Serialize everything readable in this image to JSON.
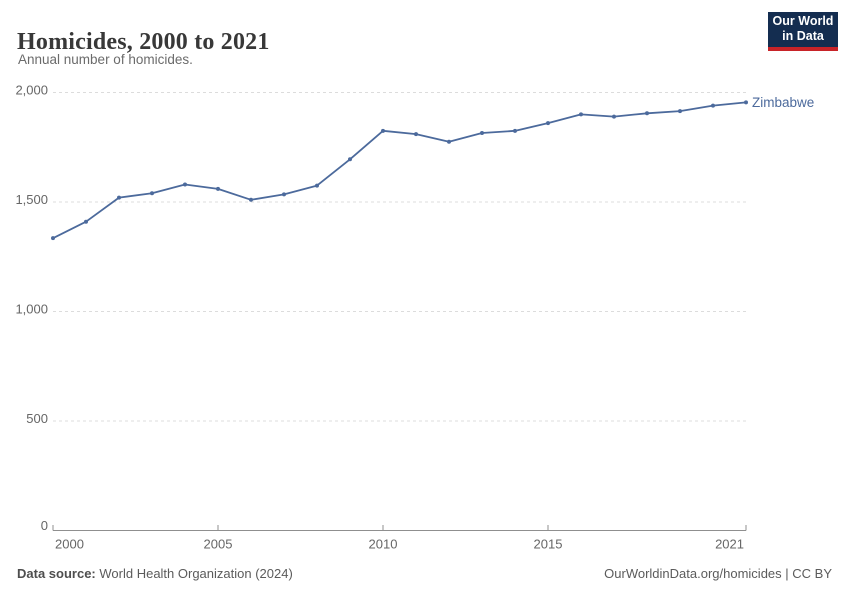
{
  "header": {
    "title": "Homicides, 2000 to 2021",
    "subtitle": "Annual number of homicides."
  },
  "logo": {
    "line1": "Our World",
    "line2": "in Data",
    "bg_color": "#142d50",
    "accent_color": "#c82328"
  },
  "chart_data": {
    "type": "line",
    "title": "Homicides, 2000 to 2021",
    "subtitle": "Annual number of homicides.",
    "x": [
      2000,
      2001,
      2002,
      2003,
      2004,
      2005,
      2006,
      2007,
      2008,
      2009,
      2010,
      2011,
      2012,
      2013,
      2014,
      2015,
      2016,
      2017,
      2018,
      2019,
      2020,
      2021
    ],
    "series": [
      {
        "name": "Zimbabwe",
        "color": "#4C6A9C",
        "values": [
          1335,
          1410,
          1520,
          1540,
          1580,
          1560,
          1510,
          1535,
          1575,
          1695,
          1825,
          1810,
          1775,
          1815,
          1825,
          1860,
          1900,
          1890,
          1905,
          1915,
          1940,
          1955
        ]
      }
    ],
    "xlabel": "",
    "ylabel": "",
    "ylim": [
      0,
      2000
    ],
    "xlim": [
      2000,
      2021
    ],
    "grid": "horizontal-dashed",
    "legend_position": "end-of-line-label",
    "yticks": [
      {
        "value": 0,
        "label": "0"
      },
      {
        "value": 500,
        "label": "500"
      },
      {
        "value": 1000,
        "label": "1,000"
      },
      {
        "value": 1500,
        "label": "1,500"
      },
      {
        "value": 2000,
        "label": "2,000"
      }
    ],
    "xticks": [
      {
        "value": 2000,
        "label": "2000"
      },
      {
        "value": 2005,
        "label": "2005"
      },
      {
        "value": 2010,
        "label": "2010"
      },
      {
        "value": 2015,
        "label": "2015"
      },
      {
        "value": 2021,
        "label": "2021"
      }
    ]
  },
  "footer": {
    "datasource_label": "Data source:",
    "datasource_value": "World Health Organization (2024)",
    "credit": "OurWorldinData.org/homicides | CC BY"
  },
  "colors": {
    "line": "#4C6A9C",
    "grid": "#dcdcdc",
    "axis": "#8f8f8f",
    "tick_text": "#666666",
    "title_text": "#383838"
  }
}
